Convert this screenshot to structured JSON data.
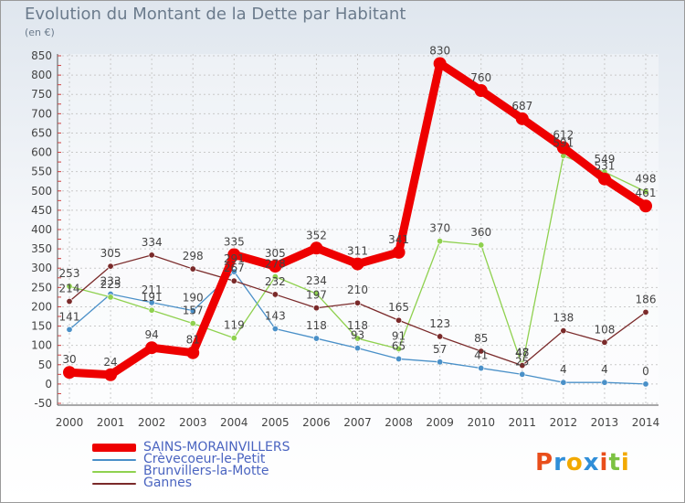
{
  "title": "Evolution du Montant de la Dette par Habitant",
  "unit_label": "(en €)",
  "logo_text": "Proxiti",
  "chart_data": {
    "type": "line",
    "title": "Evolution du Montant de la Dette par Habitant",
    "subtitle": "(en €)",
    "x": [
      2000,
      2001,
      2002,
      2003,
      2004,
      2005,
      2006,
      2007,
      2008,
      2009,
      2010,
      2011,
      2012,
      2013,
      2014
    ],
    "ylim": [
      -50,
      850
    ],
    "yticks": [
      -50,
      0,
      50,
      100,
      150,
      200,
      250,
      300,
      350,
      400,
      450,
      500,
      550,
      600,
      650,
      700,
      750,
      800,
      850
    ],
    "grid": true,
    "legend_position": "bottom-left",
    "series": [
      {
        "name": "Crèvecoeur-le-Petit",
        "color": "#4a90c8",
        "values": [
          141,
          233,
          211,
          190,
          291,
          143,
          118,
          93,
          65,
          57,
          41,
          25,
          4,
          4,
          0
        ],
        "labels": [
          "141",
          "233",
          "211",
          "190",
          "291",
          "143",
          "118",
          "93",
          "65",
          "57",
          "41",
          "25",
          "4",
          "4",
          "0"
        ]
      },
      {
        "name": "Brunvillers-la-Motte",
        "color": "#8fd14f",
        "values": [
          253,
          225,
          191,
          157,
          119,
          278,
          234,
          118,
          91,
          370,
          360,
          47,
          591,
          549,
          498
        ],
        "labels": [
          "253",
          "225",
          "191",
          "157",
          "119",
          "278",
          "234",
          "118",
          "91",
          "370",
          "360",
          "47",
          "591",
          "549",
          "498"
        ]
      },
      {
        "name": "Gannes",
        "color": "#7a2a2a",
        "values": [
          214,
          305,
          334,
          298,
          267,
          232,
          197,
          210,
          165,
          123,
          85,
          48,
          138,
          108,
          186
        ],
        "labels": [
          "214",
          "305",
          "334",
          "298",
          "267",
          "232",
          "197",
          "210",
          "165",
          "123",
          "85",
          "48",
          "138",
          "108",
          "186"
        ]
      },
      {
        "name": "SAINS-MORAINVILLERS",
        "color": "#ee0000",
        "values": [
          30,
          24,
          94,
          81,
          335,
          305,
          352,
          311,
          341,
          830,
          760,
          687,
          612,
          531,
          461
        ],
        "labels": [
          "30",
          "24",
          "94",
          "81",
          "335",
          "305",
          "352",
          "311",
          "341",
          "830",
          "760",
          "687",
          "612",
          "531",
          "461"
        ]
      }
    ],
    "legend": [
      {
        "name": "SAINS-MORAINVILLERS",
        "color": "#ee0000"
      },
      {
        "name": "Crèvecoeur-le-Petit",
        "color": "#4a90c8"
      },
      {
        "name": "Brunvillers-la-Motte",
        "color": "#8fd14f"
      },
      {
        "name": "Gannes",
        "color": "#7a2a2a"
      }
    ]
  }
}
